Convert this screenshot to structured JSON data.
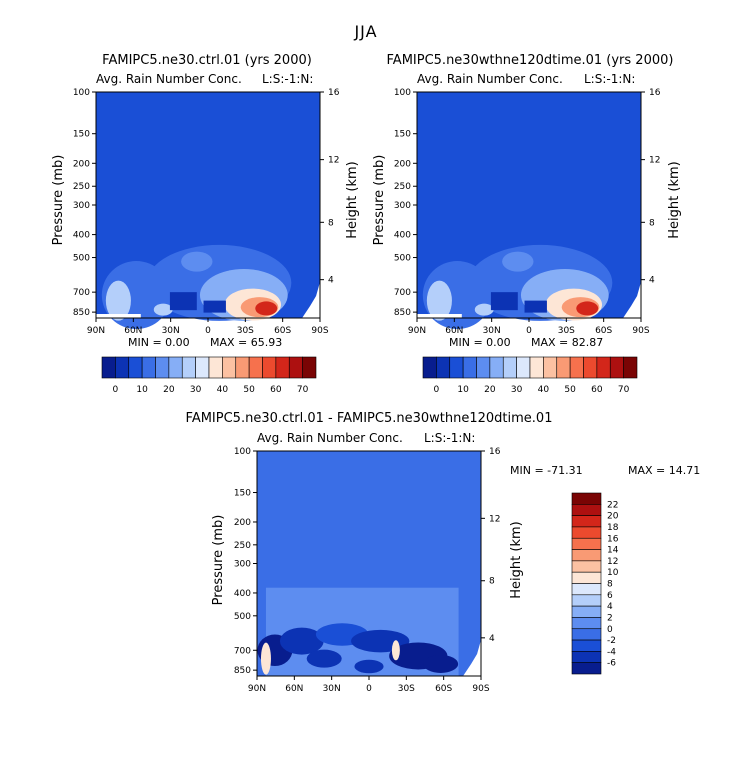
{
  "figure": {
    "title": "JJA"
  },
  "colors": {
    "frame": "#000000",
    "background_level": "#3f76ec"
  },
  "chart_data": [
    {
      "type": "heatmap",
      "title": "FAMIPC5.ne30.ctrl.01 (yrs 2000)",
      "subtitle": "Avg. Rain Number Conc.",
      "right_label": "L:S:-1:N:",
      "ylabel": "Pressure (mb)",
      "ylabel_right": "Height (km)",
      "x_ticks": [
        "90N",
        "60N",
        "30N",
        "0",
        "30S",
        "60S",
        "90S"
      ],
      "y_ticks": [
        "100",
        "150",
        "200",
        "250",
        "300",
        "400",
        "500",
        "700",
        "850"
      ],
      "y_ticks_right": [
        "16",
        "12",
        "8",
        "4"
      ],
      "min_text": "MIN =    0.00",
      "max_text": "MAX =   65.93",
      "min": 0.0,
      "max": 65.93,
      "colorbar": {
        "labels": [
          "0",
          "10",
          "20",
          "30",
          "40",
          "50",
          "60",
          "70"
        ],
        "colors": [
          "#081d8e",
          "#0c33b4",
          "#1a4fd6",
          "#3a6ee6",
          "#5d8df0",
          "#86aef6",
          "#b4cffa",
          "#dce8fc",
          "#fde6d6",
          "#fcc1a2",
          "#f99a74",
          "#f6714d",
          "#ec4a2e",
          "#d3261a",
          "#ad1010",
          "#7a0404"
        ]
      },
      "hotspots": [
        {
          "lat": -45,
          "p": 820,
          "value": 65
        }
      ]
    },
    {
      "type": "heatmap",
      "title": "FAMIPC5.ne30wthne120dtime.01 (yrs 2000)",
      "subtitle": "Avg. Rain Number Conc.",
      "right_label": "L:S:-1:N:",
      "ylabel": "Pressure (mb)",
      "ylabel_right": "Height (km)",
      "x_ticks": [
        "90N",
        "60N",
        "30N",
        "0",
        "30S",
        "60S",
        "90S"
      ],
      "y_ticks": [
        "100",
        "150",
        "200",
        "250",
        "300",
        "400",
        "500",
        "700",
        "850"
      ],
      "y_ticks_right": [
        "16",
        "12",
        "8",
        "4"
      ],
      "min_text": "MIN =    0.00",
      "max_text": "MAX =   82.87",
      "min": 0.0,
      "max": 82.87,
      "colorbar": {
        "labels": [
          "0",
          "10",
          "20",
          "30",
          "40",
          "50",
          "60",
          "70"
        ],
        "colors": [
          "#081d8e",
          "#0c33b4",
          "#1a4fd6",
          "#3a6ee6",
          "#5d8df0",
          "#86aef6",
          "#b4cffa",
          "#dce8fc",
          "#fde6d6",
          "#fcc1a2",
          "#f99a74",
          "#f6714d",
          "#ec4a2e",
          "#d3261a",
          "#ad1010",
          "#7a0404"
        ]
      },
      "hotspots": [
        {
          "lat": -50,
          "p": 820,
          "value": 80
        }
      ]
    },
    {
      "type": "heatmap",
      "title": "FAMIPC5.ne30.ctrl.01 - FAMIPC5.ne30wthne120dtime.01",
      "subtitle": "Avg. Rain Number Conc.",
      "right_label": "L:S:-1:N:",
      "ylabel": "Pressure (mb)",
      "ylabel_right": "Height (km)",
      "x_ticks": [
        "90N",
        "60N",
        "30N",
        "0",
        "30S",
        "60S",
        "90S"
      ],
      "y_ticks": [
        "100",
        "150",
        "200",
        "250",
        "300",
        "400",
        "500",
        "700",
        "850"
      ],
      "y_ticks_right": [
        "16",
        "12",
        "8",
        "4"
      ],
      "min_text": "MIN = -71.31",
      "max_text": "MAX =  14.71",
      "min": -71.31,
      "max": 14.71,
      "colorbar": {
        "labels": [
          "22",
          "20",
          "18",
          "16",
          "14",
          "12",
          "10",
          "8",
          "6",
          "4",
          "2",
          "0",
          "-2",
          "-4",
          "-6"
        ],
        "colors": [
          "#7a0404",
          "#ad1010",
          "#d3261a",
          "#ec4a2e",
          "#f6714d",
          "#f99a74",
          "#fcc1a2",
          "#fde6d6",
          "#dce8fc",
          "#b4cffa",
          "#86aef6",
          "#5d8df0",
          "#3a6ee6",
          "#1a4fd6",
          "#0c33b4",
          "#081d8e"
        ]
      }
    }
  ]
}
